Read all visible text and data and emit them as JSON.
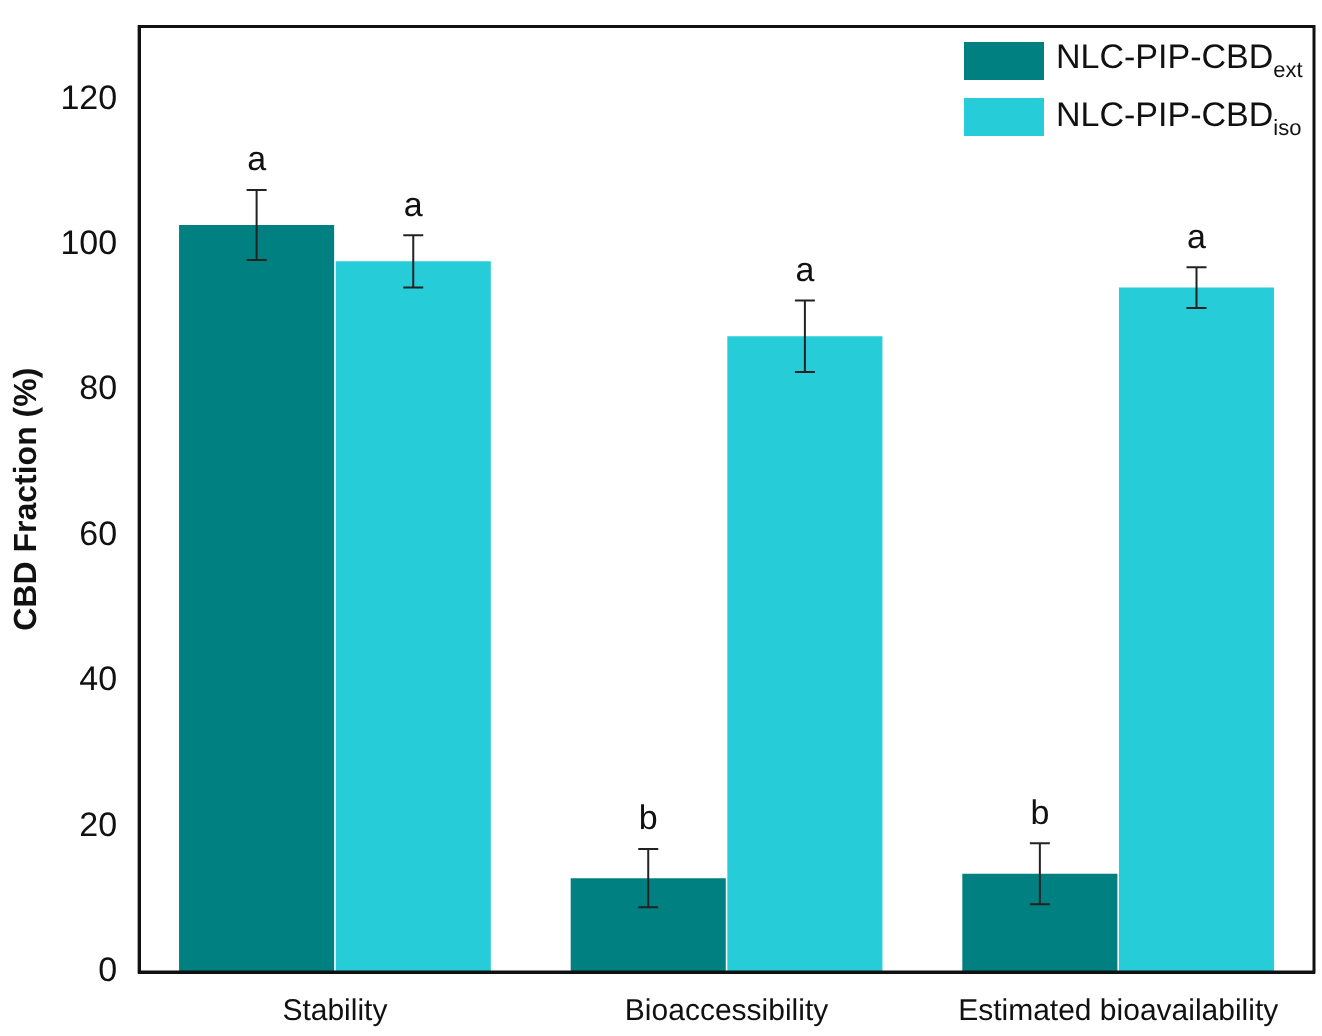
{
  "chart_data": {
    "type": "bar",
    "ylabel": "CBD Fraction (%)",
    "categories": [
      "Stability",
      "Bioaccessibility",
      "Estimated bioavailability"
    ],
    "series": [
      {
        "name": "NLC-PIP-CBD$_{ext}$",
        "color": "#008080",
        "values": [
          102.7,
          12.9,
          13.5
        ],
        "errors": [
          4.8,
          4.0,
          4.2
        ]
      },
      {
        "name": "NLC-PIP-CBD$_{iso}$",
        "color": "#26ccd8",
        "values": [
          97.7,
          87.4,
          94.1
        ],
        "errors": [
          3.6,
          4.9,
          2.8
        ]
      }
    ],
    "ylim": [
      0,
      130
    ],
    "yticks": [
      0,
      20,
      40,
      60,
      80,
      100,
      120
    ],
    "grid": false,
    "legend": "top right",
    "annotations": [
      "a",
      "a",
      "b",
      "a",
      "b",
      "a"
    ]
  }
}
